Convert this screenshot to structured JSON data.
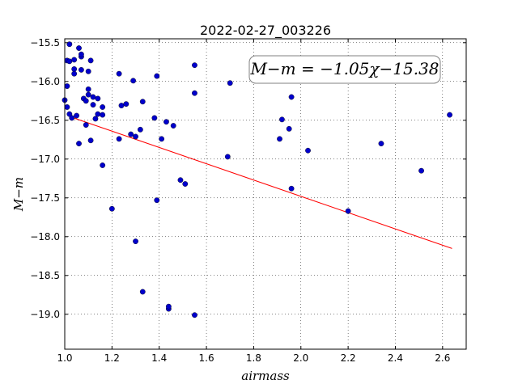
{
  "chart_data": {
    "type": "scatter",
    "title": "2022-02-27_003226",
    "xlabel": "airmass",
    "ylabel": "M−m",
    "xlim": [
      1.0,
      2.7
    ],
    "ylim": [
      -19.45,
      -15.45
    ],
    "y_inverted": true,
    "x_ticks": [
      1.0,
      1.2,
      1.4,
      1.6,
      1.8,
      2.0,
      2.2,
      2.4,
      2.6
    ],
    "x_tick_labels": [
      "1.0",
      "1.2",
      "1.4",
      "1.6",
      "1.8",
      "2.0",
      "2.2",
      "2.4",
      "2.6"
    ],
    "y_ticks": [
      -15.5,
      -16.0,
      -16.5,
      -17.0,
      -17.5,
      -18.0,
      -18.5,
      -19.0
    ],
    "y_tick_labels": [
      "−15.5",
      "−16.0",
      "−16.5",
      "−17.0",
      "−17.5",
      "−18.0",
      "−18.5",
      "−19.0"
    ],
    "grid": true,
    "point_color": "#0000cc",
    "line_color": "#ff0000",
    "annotation": "M−m = −1.05χ−15.38",
    "fit": {
      "slope": -1.05,
      "intercept": -15.38,
      "x_range": [
        1.03,
        2.64
      ]
    },
    "points": [
      [
        1.0,
        -16.24
      ],
      [
        1.01,
        -15.73
      ],
      [
        1.01,
        -16.06
      ],
      [
        1.01,
        -16.33
      ],
      [
        1.02,
        -15.52
      ],
      [
        1.02,
        -15.74
      ],
      [
        1.02,
        -16.42
      ],
      [
        1.03,
        -16.47
      ],
      [
        1.04,
        -15.72
      ],
      [
        1.04,
        -15.84
      ],
      [
        1.04,
        -15.9
      ],
      [
        1.05,
        -16.44
      ],
      [
        1.06,
        -15.57
      ],
      [
        1.06,
        -16.8
      ],
      [
        1.07,
        -15.68
      ],
      [
        1.07,
        -15.65
      ],
      [
        1.07,
        -15.85
      ],
      [
        1.08,
        -16.22
      ],
      [
        1.09,
        -16.56
      ],
      [
        1.09,
        -16.25
      ],
      [
        1.1,
        -16.1
      ],
      [
        1.1,
        -16.17
      ],
      [
        1.1,
        -15.87
      ],
      [
        1.11,
        -15.73
      ],
      [
        1.11,
        -16.76
      ],
      [
        1.12,
        -16.2
      ],
      [
        1.12,
        -16.3
      ],
      [
        1.13,
        -16.48
      ],
      [
        1.14,
        -16.42
      ],
      [
        1.14,
        -16.22
      ],
      [
        1.16,
        -16.33
      ],
      [
        1.16,
        -16.43
      ],
      [
        1.16,
        -17.08
      ],
      [
        1.2,
        -17.64
      ],
      [
        1.23,
        -15.9
      ],
      [
        1.23,
        -16.74
      ],
      [
        1.24,
        -16.31
      ],
      [
        1.26,
        -16.29
      ],
      [
        1.28,
        -16.68
      ],
      [
        1.29,
        -15.99
      ],
      [
        1.3,
        -16.71
      ],
      [
        1.3,
        -18.06
      ],
      [
        1.32,
        -16.62
      ],
      [
        1.33,
        -18.71
      ],
      [
        1.33,
        -16.26
      ],
      [
        1.38,
        -16.47
      ],
      [
        1.39,
        -17.53
      ],
      [
        1.39,
        -15.93
      ],
      [
        1.41,
        -16.74
      ],
      [
        1.43,
        -16.52
      ],
      [
        1.44,
        -18.93
      ],
      [
        1.44,
        -18.9
      ],
      [
        1.46,
        -16.57
      ],
      [
        1.49,
        -17.27
      ],
      [
        1.51,
        -17.32
      ],
      [
        1.55,
        -15.79
      ],
      [
        1.55,
        -19.01
      ],
      [
        1.55,
        -16.15
      ],
      [
        1.69,
        -16.97
      ],
      [
        1.7,
        -16.02
      ],
      [
        1.82,
        -15.94
      ],
      [
        1.91,
        -16.74
      ],
      [
        1.92,
        -16.49
      ],
      [
        1.95,
        -16.61
      ],
      [
        1.96,
        -16.2
      ],
      [
        1.96,
        -17.38
      ],
      [
        2.03,
        -16.89
      ],
      [
        2.2,
        -17.67
      ],
      [
        2.34,
        -16.8
      ],
      [
        2.51,
        -17.15
      ],
      [
        2.63,
        -16.43
      ]
    ]
  }
}
